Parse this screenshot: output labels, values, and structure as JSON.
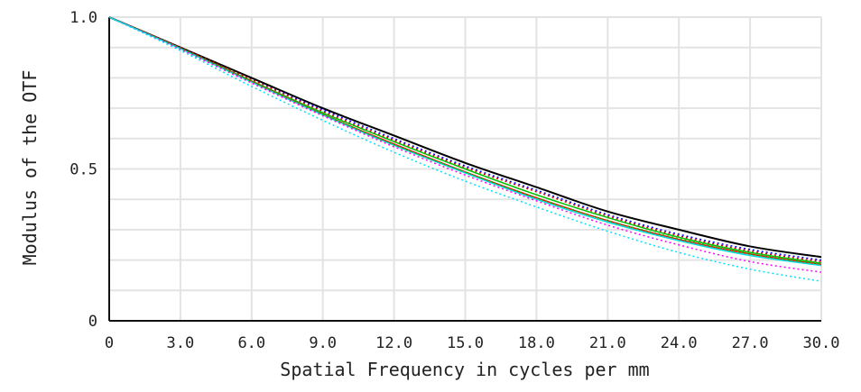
{
  "chart_data": {
    "type": "line",
    "xlabel": "Spatial Frequency in cycles per mm",
    "ylabel": "Modulus of the OTF",
    "xlim": [
      0,
      30
    ],
    "ylim": [
      0,
      1
    ],
    "xticks": [
      "0",
      "3.0",
      "6.0",
      "9.0",
      "12.0",
      "15.0",
      "18.0",
      "21.0",
      "24.0",
      "27.0",
      "30.0"
    ],
    "yticks": [
      "0",
      "0.5",
      "1.0"
    ],
    "grid": true,
    "x": [
      0,
      3,
      6,
      9,
      12,
      15,
      18,
      21,
      24,
      27,
      30
    ],
    "series": [
      {
        "name": "black-solid",
        "color": "#000000",
        "dash": false,
        "values": [
          1,
          0.9,
          0.8,
          0.7,
          0.61,
          0.52,
          0.44,
          0.36,
          0.3,
          0.245,
          0.21
        ]
      },
      {
        "name": "blue-dotted",
        "color": "#0000ff",
        "dash": true,
        "values": [
          1,
          0.9,
          0.795,
          0.695,
          0.6,
          0.51,
          0.43,
          0.35,
          0.285,
          0.235,
          0.2
        ]
      },
      {
        "name": "red-dotted",
        "color": "#d00000",
        "dash": true,
        "values": [
          1,
          0.9,
          0.795,
          0.69,
          0.595,
          0.505,
          0.425,
          0.345,
          0.28,
          0.23,
          0.195
        ]
      },
      {
        "name": "green-solid",
        "color": "#00c000",
        "dash": false,
        "values": [
          1,
          0.898,
          0.79,
          0.685,
          0.59,
          0.5,
          0.415,
          0.34,
          0.275,
          0.225,
          0.19
        ]
      },
      {
        "name": "red-solid",
        "color": "#ff0000",
        "dash": false,
        "values": [
          1,
          0.897,
          0.788,
          0.68,
          0.582,
          0.49,
          0.405,
          0.33,
          0.268,
          0.22,
          0.185
        ]
      },
      {
        "name": "cyan-solid",
        "color": "#00e0e0",
        "dash": false,
        "values": [
          1,
          0.896,
          0.786,
          0.678,
          0.578,
          0.487,
          0.4,
          0.325,
          0.264,
          0.215,
          0.182
        ]
      },
      {
        "name": "green-dotted",
        "color": "#00c000",
        "dash": true,
        "values": [
          1,
          0.896,
          0.787,
          0.68,
          0.58,
          0.49,
          0.405,
          0.33,
          0.27,
          0.22,
          0.187
        ]
      },
      {
        "name": "magenta-dotted",
        "color": "#ff00ff",
        "dash": true,
        "values": [
          1,
          0.894,
          0.783,
          0.675,
          0.573,
          0.48,
          0.395,
          0.315,
          0.25,
          0.195,
          0.16
        ]
      },
      {
        "name": "cyan-dotted",
        "color": "#00e0ff",
        "dash": true,
        "values": [
          1,
          0.89,
          0.772,
          0.66,
          0.555,
          0.46,
          0.375,
          0.295,
          0.225,
          0.17,
          0.13
        ]
      }
    ]
  }
}
